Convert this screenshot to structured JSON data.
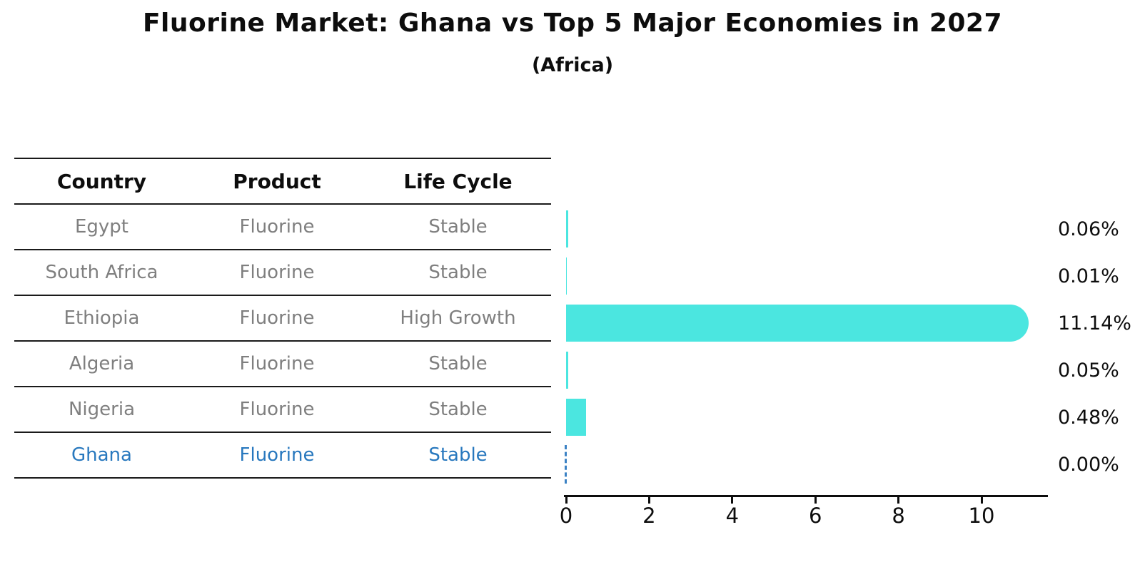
{
  "title": "Fluorine Market: Ghana vs Top 5 Major Economies in 2027",
  "subtitle": "(Africa)",
  "colors": {
    "bar": "#4be6e0",
    "highlight_text": "#2878be",
    "zero_marker": "#3b82c4",
    "table_text": "#7f7f7f",
    "axis": "#0d0d0d"
  },
  "table": {
    "headers": [
      "Country",
      "Product",
      "Life Cycle"
    ],
    "rows": [
      {
        "country": "Egypt",
        "product": "Fluorine",
        "life_cycle": "Stable",
        "highlight": false
      },
      {
        "country": "South Africa",
        "product": "Fluorine",
        "life_cycle": "Stable",
        "highlight": false
      },
      {
        "country": "Ethiopia",
        "product": "Fluorine",
        "life_cycle": "High Growth",
        "highlight": false
      },
      {
        "country": "Algeria",
        "product": "Fluorine",
        "life_cycle": "Stable",
        "highlight": false
      },
      {
        "country": "Nigeria",
        "product": "Fluorine",
        "life_cycle": "Stable",
        "highlight": false
      },
      {
        "country": "Ghana",
        "product": "Fluorine",
        "life_cycle": "Stable",
        "highlight": true
      }
    ]
  },
  "chart_data": {
    "type": "bar",
    "orientation": "horizontal",
    "title": "Fluorine Market: Ghana vs Top 5 Major Economies in 2027",
    "subtitle": "(Africa)",
    "categories": [
      "Egypt",
      "South Africa",
      "Ethiopia",
      "Algeria",
      "Nigeria",
      "Ghana"
    ],
    "values": [
      0.06,
      0.01,
      11.14,
      0.05,
      0.48,
      0.0
    ],
    "value_labels": [
      "0.06%",
      "0.01%",
      "11.14%",
      "0.05%",
      "0.48%",
      "0.00%"
    ],
    "x_ticks": [
      0,
      2,
      4,
      6,
      8,
      10
    ],
    "x_tick_labels": [
      "0",
      "2",
      "4",
      "6",
      "8",
      "10"
    ],
    "xlim": [
      0,
      11.63
    ],
    "grid": false,
    "legend": false,
    "highlight_country": "Ghana",
    "zero_marker_style": "dashed"
  }
}
